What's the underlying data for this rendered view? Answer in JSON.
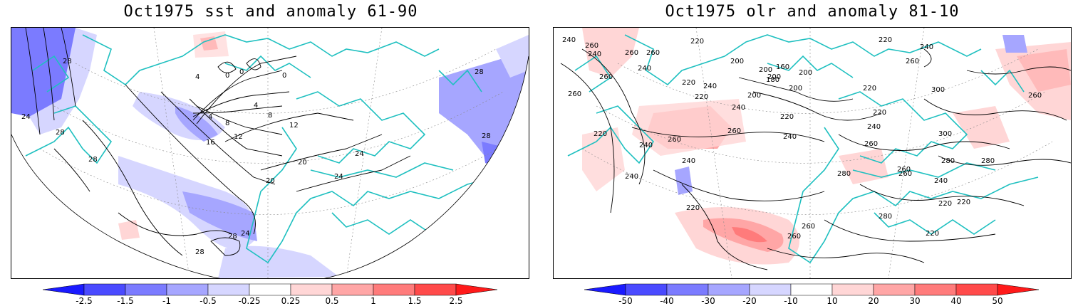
{
  "panels": [
    {
      "title": "Oct1975 sst and anomaly 61-90",
      "colorbar": {
        "labels": [
          "-2.5",
          "-1.5",
          "-1",
          "-0.5",
          "-0.25",
          "0.25",
          "0.5",
          "1",
          "1.5",
          "2.5"
        ],
        "colors": [
          "#1a1aff",
          "#4a4aff",
          "#7b7bff",
          "#a6a6ff",
          "#d6d6ff",
          "#ffffff",
          "#ffd6d6",
          "#ffa6a6",
          "#ff7b7b",
          "#ff4a4a",
          "#ff1a1a"
        ]
      },
      "contour_labels": [
        "28",
        "24",
        "28",
        "28",
        "4",
        "0",
        "0",
        "0",
        "4",
        "8",
        "4",
        "8",
        "12",
        "12",
        "16",
        "20",
        "20",
        "24",
        "24",
        "28",
        "28",
        "24",
        "28",
        "28"
      ]
    },
    {
      "title": "Oct1975 olr and anomaly 81-10",
      "colorbar": {
        "labels": [
          "-50",
          "-40",
          "-30",
          "-20",
          "-10",
          "10",
          "20",
          "30",
          "40",
          "50"
        ],
        "colors": [
          "#1a1aff",
          "#4a4aff",
          "#7b7bff",
          "#a6a6ff",
          "#d6d6ff",
          "#ffffff",
          "#ffd6d6",
          "#ffa6a6",
          "#ff7b7b",
          "#ff4a4a",
          "#ff1a1a"
        ]
      },
      "contour_labels": [
        "240",
        "260",
        "240",
        "260",
        "260",
        "260",
        "240",
        "220",
        "200",
        "220",
        "240",
        "220",
        "200",
        "240",
        "260",
        "200",
        "200",
        "160",
        "180",
        "200",
        "200",
        "220",
        "260",
        "220",
        "260",
        "300",
        "260",
        "220",
        "240",
        "220",
        "240",
        "240",
        "240",
        "260",
        "300",
        "280",
        "260",
        "240",
        "280",
        "260",
        "240",
        "220",
        "220",
        "260",
        "280",
        "240",
        "220",
        "220",
        "260",
        "280",
        "260",
        "220"
      ]
    }
  ],
  "colors": {
    "coast": "#1fc0c0",
    "contour": "#000000",
    "graticule": "#888888"
  }
}
